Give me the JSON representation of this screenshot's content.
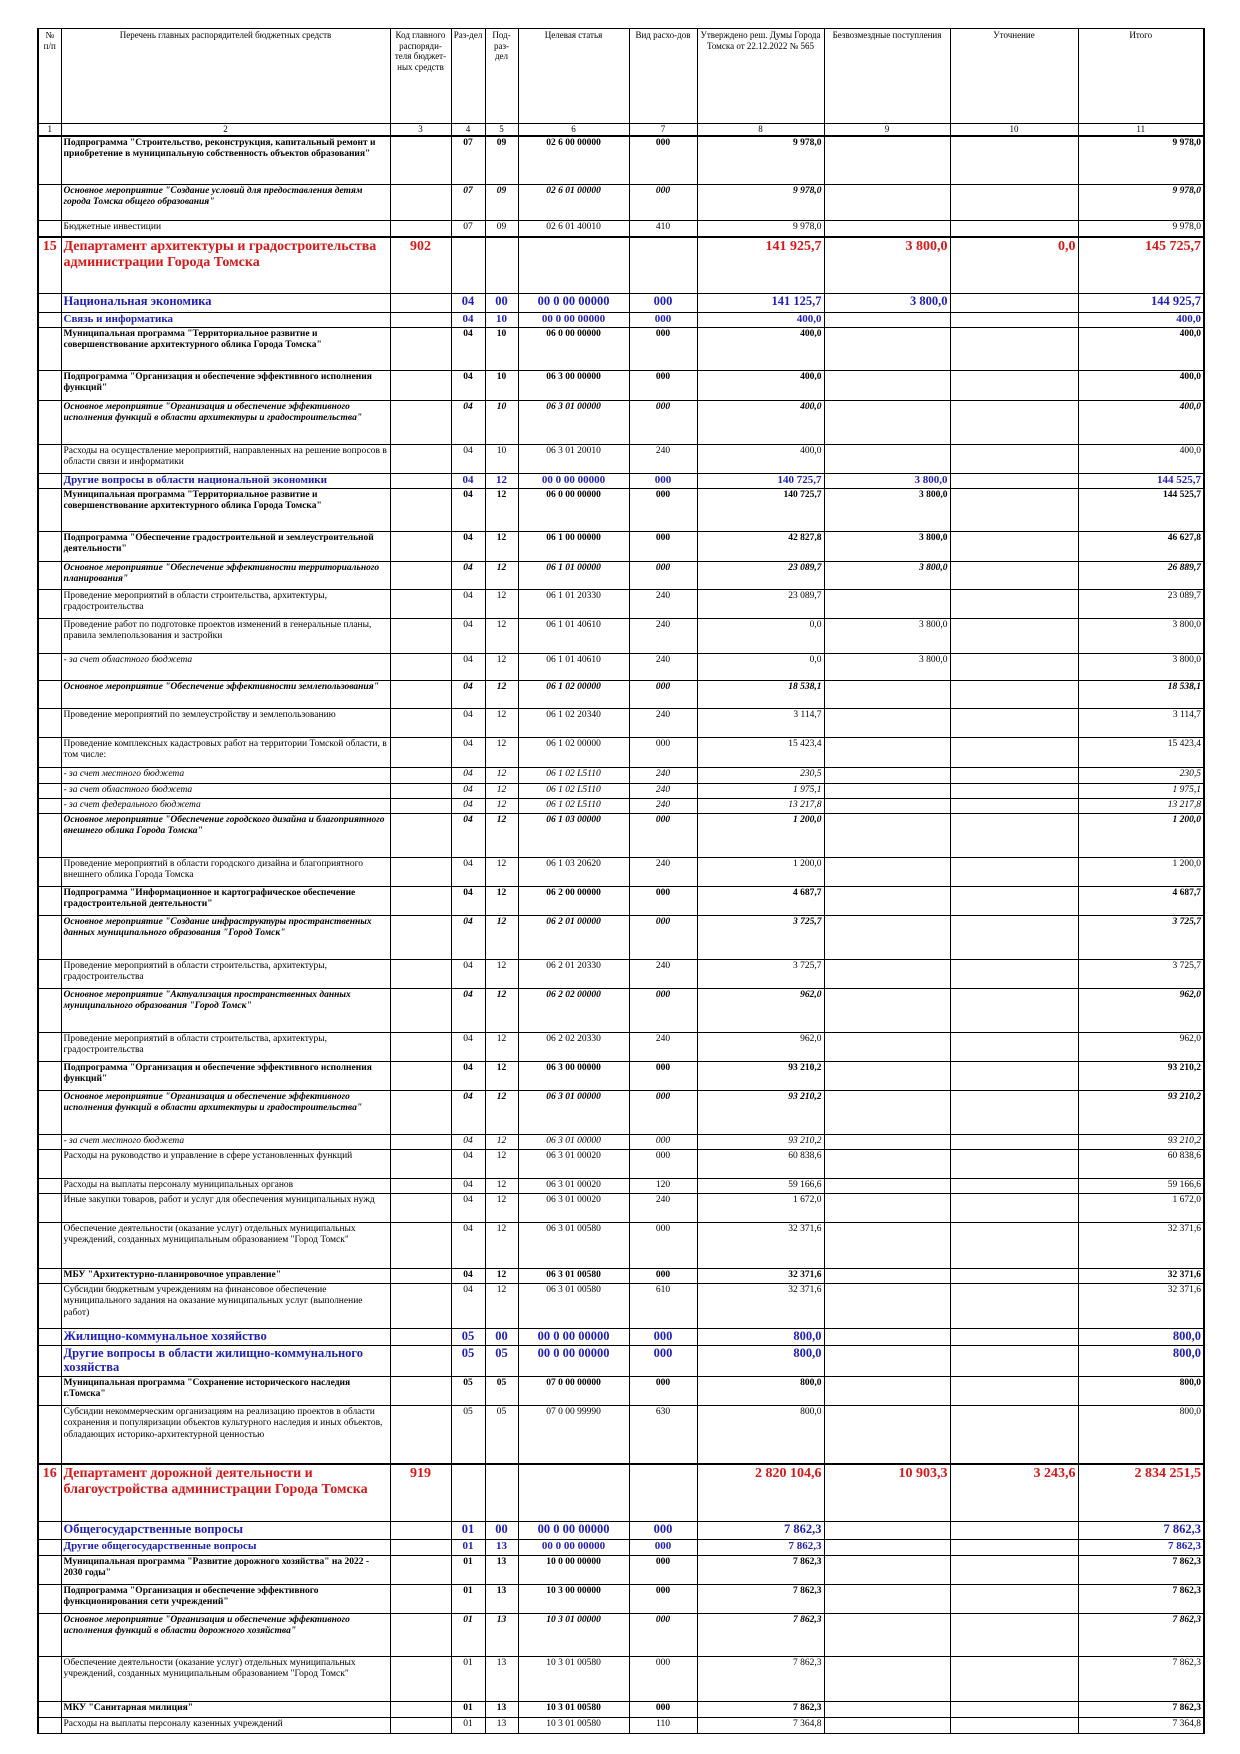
{
  "table": {
    "header": [
      "№ п/п",
      "Перечень главных распорядителей бюджетных средств",
      "Код главного распоряди-теля бюджет-ных средств",
      "Раз-дел",
      "Под-раз-дел",
      "Целевая статья",
      "Вид расхо-дов",
      "Утверждено реш. Думы Города Томска от 22.12.2022 № 565",
      "Безвозмездные поступления",
      "Уточнение",
      "Итого"
    ],
    "column_numbers": [
      1,
      2,
      3,
      4,
      5,
      6,
      7,
      8,
      9,
      10,
      11
    ],
    "rows": [
      {
        "style": "bold",
        "cells": [
          null,
          "Подпрограмма \"Строительство, реконструкция, капитальный ремонт и приобретение в муниципальную собственность объектов образования\"",
          null,
          "07",
          "09",
          "02 6 00 00000",
          "000",
          "9 978,0",
          null,
          null,
          "9 978,0"
        ]
      },
      {
        "style": "italic",
        "cells": [
          null,
          "Основное мероприятие \"Создание условий для предоставления детям города Томска общего образования\"",
          null,
          "07",
          "09",
          "02 6 01 00000",
          "000",
          "9 978,0",
          null,
          null,
          "9 978,0"
        ]
      },
      {
        "style": "plain",
        "cells": [
          null,
          "Бюджетные инвестиции",
          null,
          "07",
          "09",
          "02 6 01 40010",
          "410",
          "9 978,0",
          null,
          null,
          "9 978,0"
        ]
      },
      {
        "style": "red",
        "cells": [
          "15",
          "Департамент архитектуры и градостроительства администрации Города Томска",
          "902",
          null,
          null,
          null,
          null,
          "141 925,7",
          "3 800,0",
          "0,0",
          "145 725,7"
        ]
      },
      {
        "style": "blue",
        "cells": [
          null,
          "Национальная экономика",
          null,
          "04",
          "00",
          "00 0 00 00000",
          "000",
          "141 125,7",
          "3 800,0",
          null,
          "144 925,7"
        ]
      },
      {
        "style": "blue-small",
        "cells": [
          null,
          "Связь и информатика",
          null,
          "04",
          "10",
          "00 0 00 00000",
          "000",
          "400,0",
          null,
          null,
          "400,0"
        ]
      },
      {
        "style": "bold",
        "cells": [
          null,
          "Муниципальная программа \"Территориальное развитие и совершенствование архитектурного облика Города Томска\"",
          null,
          "04",
          "10",
          "06 0 00 00000",
          "000",
          "400,0",
          null,
          null,
          "400,0"
        ]
      },
      {
        "style": "bold",
        "cells": [
          null,
          "Подпрограмма \"Организация и обеспечение эффективного исполнения функций\"",
          null,
          "04",
          "10",
          "06 3 00 00000",
          "000",
          "400,0",
          null,
          null,
          "400,0"
        ]
      },
      {
        "style": "italic",
        "cells": [
          null,
          "Основное мероприятие \"Организация и обеспечение эффективного исполнения функций в области архитектуры и градостроительства\"",
          null,
          "04",
          "10",
          "06 3 01 00000",
          "000",
          "400,0",
          null,
          null,
          "400,0"
        ]
      },
      {
        "style": "plain",
        "cells": [
          null,
          "Расходы на осуществление мероприятий, направленных на решение вопросов в области связи и информатики",
          null,
          "04",
          "10",
          "06 3 01 20010",
          "240",
          "400,0",
          null,
          null,
          "400,0"
        ]
      },
      {
        "style": "blue-small",
        "cells": [
          null,
          "Другие вопросы в области национальной экономики",
          null,
          "04",
          "12",
          "00 0 00 00000",
          "000",
          "140 725,7",
          "3 800,0",
          null,
          "144 525,7"
        ]
      },
      {
        "style": "bold",
        "cells": [
          null,
          "Муниципальная программа \"Территориальное развитие и совершенствование архитектурного облика Города Томска\"",
          null,
          "04",
          "12",
          "06 0 00 00000",
          "000",
          "140 725,7",
          "3 800,0",
          null,
          "144 525,7"
        ]
      },
      {
        "style": "bold",
        "cells": [
          null,
          "Подпрограмма \"Обеспечение градостроительной и землеустроительной деятельности\"",
          null,
          "04",
          "12",
          "06 1 00 00000",
          "000",
          "42 827,8",
          "3 800,0",
          null,
          "46 627,8"
        ]
      },
      {
        "style": "italic",
        "cells": [
          null,
          "Основное мероприятие \"Обеспечение эффективности территориального планирования\"",
          null,
          "04",
          "12",
          "06 1 01 00000",
          "000",
          "23 089,7",
          "3 800,0",
          null,
          "26 889,7"
        ]
      },
      {
        "style": "plain",
        "cells": [
          null,
          "Проведение мероприятий в области строительства, архитектуры, градостроительства",
          null,
          "04",
          "12",
          "06 1 01 20330",
          "240",
          "23 089,7",
          null,
          null,
          "23 089,7"
        ]
      },
      {
        "style": "plain",
        "cells": [
          null,
          "Проведение работ по подготовке проектов изменений в генеральные планы, правила землепользования и застройки",
          null,
          "04",
          "12",
          "06 1 01 40610",
          "240",
          "0,0",
          "3 800,0",
          null,
          "3 800,0"
        ]
      },
      {
        "style": "sub",
        "cells": [
          null,
          "- за счет областного бюджета",
          null,
          "04",
          "12",
          "06 1 01 40610",
          "240",
          "0,0",
          "3 800,0",
          null,
          "3 800,0"
        ]
      },
      {
        "style": "italic",
        "cells": [
          null,
          "Основное мероприятие \"Обеспечение эффективности землепользования\"",
          null,
          "04",
          "12",
          "06 1 02 00000",
          "000",
          "18 538,1",
          null,
          null,
          "18 538,1"
        ]
      },
      {
        "style": "plain",
        "cells": [
          null,
          "Проведение мероприятий по землеустройству и землепользованию",
          null,
          "04",
          "12",
          "06 1 02 20340",
          "240",
          "3 114,7",
          null,
          null,
          "3 114,7"
        ]
      },
      {
        "style": "plain",
        "cells": [
          null,
          "Проведение комплексных кадастровых работ на территории Томской области, в том числе:",
          null,
          "04",
          "12",
          "06 1 02 00000",
          "000",
          "15 423,4",
          null,
          null,
          "15 423,4"
        ]
      },
      {
        "style": "sub-italic",
        "cells": [
          null,
          "- за счет местного бюджета",
          null,
          "04",
          "12",
          "06 1 02 L5110",
          "240",
          "230,5",
          null,
          null,
          "230,5"
        ]
      },
      {
        "style": "sub-italic",
        "cells": [
          null,
          "- за счет областного бюджета",
          null,
          "04",
          "12",
          "06 1 02 L5110",
          "240",
          "1 975,1",
          null,
          null,
          "1 975,1"
        ]
      },
      {
        "style": "sub-italic",
        "cells": [
          null,
          "- за счет федерального бюджета",
          null,
          "04",
          "12",
          "06 1 02 L5110",
          "240",
          "13 217,8",
          null,
          null,
          "13 217,8"
        ]
      },
      {
        "style": "italic",
        "cells": [
          null,
          "Основное мероприятие \"Обеспечение городского дизайна и благоприятного внешнего облика Города Томска\"",
          null,
          "04",
          "12",
          "06 1 03 00000",
          "000",
          "1 200,0",
          null,
          null,
          "1 200,0"
        ]
      },
      {
        "style": "plain",
        "cells": [
          null,
          "Проведение мероприятий в области городского дизайна и благоприятного внешнего облика Города Томска",
          null,
          "04",
          "12",
          "06 1 03 20620",
          "240",
          "1 200,0",
          null,
          null,
          "1 200,0"
        ]
      },
      {
        "style": "bold",
        "cells": [
          null,
          "Подпрограмма \"Информационное и картографическое обеспечение градостроительной деятельности\"",
          null,
          "04",
          "12",
          "06 2 00 00000",
          "000",
          "4 687,7",
          null,
          null,
          "4 687,7"
        ]
      },
      {
        "style": "italic",
        "cells": [
          null,
          "Основное мероприятие \"Создание инфраструктуры пространственных данных муниципального образования \"Город Томск\"",
          null,
          "04",
          "12",
          "06 2 01 00000",
          "000",
          "3 725,7",
          null,
          null,
          "3 725,7"
        ]
      },
      {
        "style": "plain",
        "cells": [
          null,
          "Проведение мероприятий в области строительства, архитектуры, градостроительства",
          null,
          "04",
          "12",
          "06 2 01 20330",
          "240",
          "3 725,7",
          null,
          null,
          "3 725,7"
        ]
      },
      {
        "style": "italic",
        "cells": [
          null,
          "Основное мероприятие \"Актуализация пространственных данных муниципального образования \"Город Томск\"",
          null,
          "04",
          "12",
          "06 2 02 00000",
          "000",
          "962,0",
          null,
          null,
          "962,0"
        ]
      },
      {
        "style": "plain",
        "cells": [
          null,
          "Проведение мероприятий в области строительства, архитектуры, градостроительства",
          null,
          "04",
          "12",
          "06 2 02 20330",
          "240",
          "962,0",
          null,
          null,
          "962,0"
        ]
      },
      {
        "style": "bold",
        "cells": [
          null,
          "Подпрограмма \"Организация и обеспечение эффективного исполнения функций\"",
          null,
          "04",
          "12",
          "06 3 00 00000",
          "000",
          "93 210,2",
          null,
          null,
          "93 210,2"
        ]
      },
      {
        "style": "italic",
        "cells": [
          null,
          "Основное мероприятие \"Организация и обеспечение эффективного исполнения функций в области архитектуры и градостроительства\"",
          null,
          "04",
          "12",
          "06 3 01 00000",
          "000",
          "93 210,2",
          null,
          null,
          "93 210,2"
        ]
      },
      {
        "style": "sub-italic",
        "cells": [
          null,
          "- за счет местного бюджета",
          null,
          "04",
          "12",
          "06 3 01 00000",
          "000",
          "93 210,2",
          null,
          null,
          "93 210,2"
        ]
      },
      {
        "style": "plain",
        "cells": [
          null,
          "Расходы на руководство и управление в сфере установленных функций",
          null,
          "04",
          "12",
          "06 3 01 00020",
          "000",
          "60 838,6",
          null,
          null,
          "60 838,6"
        ]
      },
      {
        "style": "plain",
        "cells": [
          null,
          "Расходы на выплаты персоналу муниципальных органов",
          null,
          "04",
          "12",
          "06 3 01 00020",
          "120",
          "59 166,6",
          null,
          null,
          "59 166,6"
        ]
      },
      {
        "style": "plain",
        "cells": [
          null,
          "Иные закупки товаров, работ и услуг для обеспечения муниципальных нужд",
          null,
          "04",
          "12",
          "06 3 01 00020",
          "240",
          "1 672,0",
          null,
          null,
          "1 672,0"
        ]
      },
      {
        "style": "plain",
        "cells": [
          null,
          "Обеспечение деятельности (оказание услуг) отдельных муниципальных учреждений, созданных муниципальным образованием \"Город Томск\"",
          null,
          "04",
          "12",
          "06 3 01 00580",
          "000",
          "32 371,6",
          null,
          null,
          "32 371,6"
        ]
      },
      {
        "style": "bold",
        "cells": [
          null,
          "МБУ \"Архитектурно-планировочное управление\"",
          null,
          "04",
          "12",
          "06 3 01 00580",
          "000",
          "32 371,6",
          null,
          null,
          "32 371,6"
        ]
      },
      {
        "style": "plain",
        "cells": [
          null,
          "Субсидии бюджетным учреждениям на финансовое обеспечение муниципального задания на оказание муниципальных услуг (выполнение работ)",
          null,
          "04",
          "12",
          "06 3 01 00580",
          "610",
          "32 371,6",
          null,
          null,
          "32 371,6"
        ]
      },
      {
        "style": "blue",
        "cells": [
          null,
          "Жилищно-коммунальное хозяйство",
          null,
          "05",
          "00",
          "00 0 00 00000",
          "000",
          "800,0",
          null,
          null,
          "800,0"
        ]
      },
      {
        "style": "blue",
        "cells": [
          null,
          "Другие вопросы в области жилищно-коммунального хозяйства",
          null,
          "05",
          "05",
          "00 0 00 00000",
          "000",
          "800,0",
          null,
          null,
          "800,0"
        ]
      },
      {
        "style": "bold",
        "cells": [
          null,
          "Муниципальная программа \"Сохранение исторического наследия г.Томска\"",
          null,
          "05",
          "05",
          "07 0 00 00000",
          "000",
          "800,0",
          null,
          null,
          "800,0"
        ]
      },
      {
        "style": "plain",
        "cells": [
          null,
          "Субсидии некоммерческим организациям на реализацию проектов в области сохранения и популяризации объектов культурного наследия и иных объектов, обладающих историко-архитектурной ценностью",
          null,
          "05",
          "05",
          "07 0 00 99990",
          "630",
          "800,0",
          null,
          null,
          "800,0"
        ]
      },
      {
        "style": "red",
        "cells": [
          "16",
          "Департамент дорожной деятельности и благоустройства администрации Города Томска",
          "919",
          null,
          null,
          null,
          null,
          "2 820 104,6",
          "10 903,3",
          "3 243,6",
          "2 834 251,5"
        ]
      },
      {
        "style": "blue",
        "cells": [
          null,
          "Общегосударственные вопросы",
          null,
          "01",
          "00",
          "00 0 00 00000",
          "000",
          "7 862,3",
          null,
          null,
          "7 862,3"
        ]
      },
      {
        "style": "blue-small",
        "cells": [
          null,
          "Другие общегосударственные вопросы",
          null,
          "01",
          "13",
          "00 0 00 00000",
          "000",
          "7 862,3",
          null,
          null,
          "7 862,3"
        ]
      },
      {
        "style": "bold",
        "cells": [
          null,
          "Муниципальная программа \"Развитие дорожного хозяйства\" на 2022 - 2030 годы\"",
          null,
          "01",
          "13",
          "10 0 00 00000",
          "000",
          "7 862,3",
          null,
          null,
          "7 862,3"
        ]
      },
      {
        "style": "bold",
        "cells": [
          null,
          "Подпрограмма \"Организация и обеспечение эффективного функционирования сети учреждений\"",
          null,
          "01",
          "13",
          "10 3 00 00000",
          "000",
          "7 862,3",
          null,
          null,
          "7 862,3"
        ]
      },
      {
        "style": "italic",
        "cells": [
          null,
          "Основное мероприятие \"Организация и обеспечение эффективного исполнения функций в области дорожного хозяйства\"",
          null,
          "01",
          "13",
          "10 3 01 00000",
          "000",
          "7 862,3",
          null,
          null,
          "7 862,3"
        ]
      },
      {
        "style": "plain",
        "cells": [
          null,
          "Обеспечение деятельности (оказание услуг) отдельных муниципальных учреждений, созданных муниципальным образованием \"Город Томск\"",
          null,
          "01",
          "13",
          "10 3 01 00580",
          "000",
          "7 862,3",
          null,
          null,
          "7 862,3"
        ]
      },
      {
        "style": "bold",
        "cells": [
          null,
          "МКУ \"Санитарная милиция\"",
          null,
          "01",
          "13",
          "10 3 01 00580",
          "000",
          "7 862,3",
          null,
          null,
          "7 862,3"
        ]
      },
      {
        "style": "plain",
        "cells": [
          null,
          "Расходы на выплаты персоналу казенных учреждений",
          null,
          "01",
          "13",
          "10 3 01 00580",
          "110",
          "7 364,8",
          null,
          null,
          "7 364,8"
        ]
      }
    ]
  }
}
